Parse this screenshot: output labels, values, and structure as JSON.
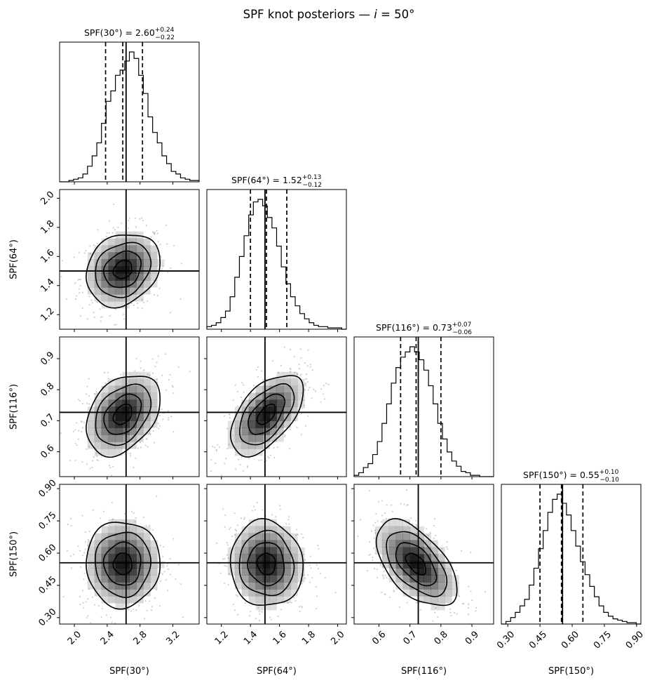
{
  "figure": {
    "title": "SPF knot posteriors — ",
    "title_math": "i",
    "title_suffix": " = 50°"
  },
  "chart_data": {
    "type": "corner",
    "parameters": [
      {
        "label": "SPF(30°)",
        "median": 2.6,
        "plus": "+0.24",
        "minus": "−0.22",
        "value_text": "2.60",
        "truth": 2.63,
        "q16": 2.38,
        "q50": 2.59,
        "q84": 2.83,
        "range": [
          1.82,
          3.52
        ],
        "ticks": [
          2.0,
          2.4,
          2.8,
          3.2
        ],
        "tick_labels": [
          "2.0",
          "2.4",
          "2.8",
          "3.2"
        ]
      },
      {
        "label": "SPF(64°)",
        "median": 1.52,
        "plus": "+0.13",
        "minus": "−0.12",
        "value_text": "1.52",
        "truth": 1.5,
        "q16": 1.4,
        "q50": 1.51,
        "q84": 1.65,
        "range": [
          1.1,
          2.06
        ],
        "ticks": [
          1.2,
          1.4,
          1.6,
          1.8,
          2.0
        ],
        "tick_labels": [
          "1.2",
          "1.4",
          "1.6",
          "1.8",
          "2.0"
        ]
      },
      {
        "label": "SPF(116°)",
        "median": 0.73,
        "plus": "+0.07",
        "minus": "−0.06",
        "value_text": "0.73",
        "truth": 0.727,
        "q16": 0.67,
        "q50": 0.72,
        "q84": 0.8,
        "range": [
          0.52,
          0.97
        ],
        "ticks": [
          0.6,
          0.7,
          0.8,
          0.9
        ],
        "tick_labels": [
          "0.6",
          "0.7",
          "0.8",
          "0.9"
        ]
      },
      {
        "label": "SPF(150°)",
        "median": 0.55,
        "plus": "+0.10",
        "minus": "−0.10",
        "value_text": "0.55",
        "truth": 0.555,
        "q16": 0.45,
        "q50": 0.55,
        "q84": 0.65,
        "range": [
          0.27,
          0.92
        ],
        "ticks": [
          0.3,
          0.45,
          0.6,
          0.75,
          0.9
        ],
        "tick_labels": [
          "0.30",
          "0.45",
          "0.60",
          "0.75",
          "0.90"
        ]
      }
    ],
    "correlations": [
      [
        0,
        1,
        0.2
      ],
      [
        0,
        2,
        0.35
      ],
      [
        1,
        2,
        0.55
      ],
      [
        0,
        3,
        0.0
      ],
      [
        1,
        3,
        -0.05
      ],
      [
        2,
        3,
        -0.55
      ]
    ],
    "histograms": [
      [
        0.0,
        0.0,
        0.01,
        0.02,
        0.03,
        0.06,
        0.12,
        0.2,
        0.3,
        0.45,
        0.62,
        0.7,
        0.82,
        0.86,
        0.93,
        1.0,
        0.95,
        0.82,
        0.68,
        0.5,
        0.38,
        0.3,
        0.2,
        0.14,
        0.08,
        0.06,
        0.03,
        0.02,
        0.01,
        0.01
      ],
      [
        0.02,
        0.03,
        0.05,
        0.09,
        0.14,
        0.25,
        0.4,
        0.56,
        0.72,
        0.88,
        0.98,
        1.0,
        0.95,
        0.86,
        0.78,
        0.64,
        0.48,
        0.35,
        0.25,
        0.18,
        0.12,
        0.08,
        0.05,
        0.03,
        0.02,
        0.02,
        0.01,
        0.01,
        0.01,
        0.0
      ],
      [
        0.01,
        0.03,
        0.07,
        0.1,
        0.17,
        0.27,
        0.41,
        0.56,
        0.72,
        0.84,
        0.92,
        0.96,
        1.0,
        0.96,
        0.9,
        0.82,
        0.7,
        0.56,
        0.41,
        0.29,
        0.19,
        0.12,
        0.08,
        0.04,
        0.03,
        0.01,
        0.01,
        0.0,
        0.0,
        0.0
      ],
      [
        0.0,
        0.02,
        0.05,
        0.09,
        0.14,
        0.19,
        0.3,
        0.43,
        0.58,
        0.72,
        0.86,
        0.96,
        1.0,
        0.93,
        0.84,
        0.72,
        0.6,
        0.48,
        0.38,
        0.29,
        0.21,
        0.14,
        0.09,
        0.06,
        0.04,
        0.03,
        0.02,
        0.01,
        0.01,
        0.0
      ]
    ],
    "contour_levels": 4,
    "line_color": "#000000",
    "density_color": "#000000",
    "scatter_color": "#bbbbbb"
  }
}
